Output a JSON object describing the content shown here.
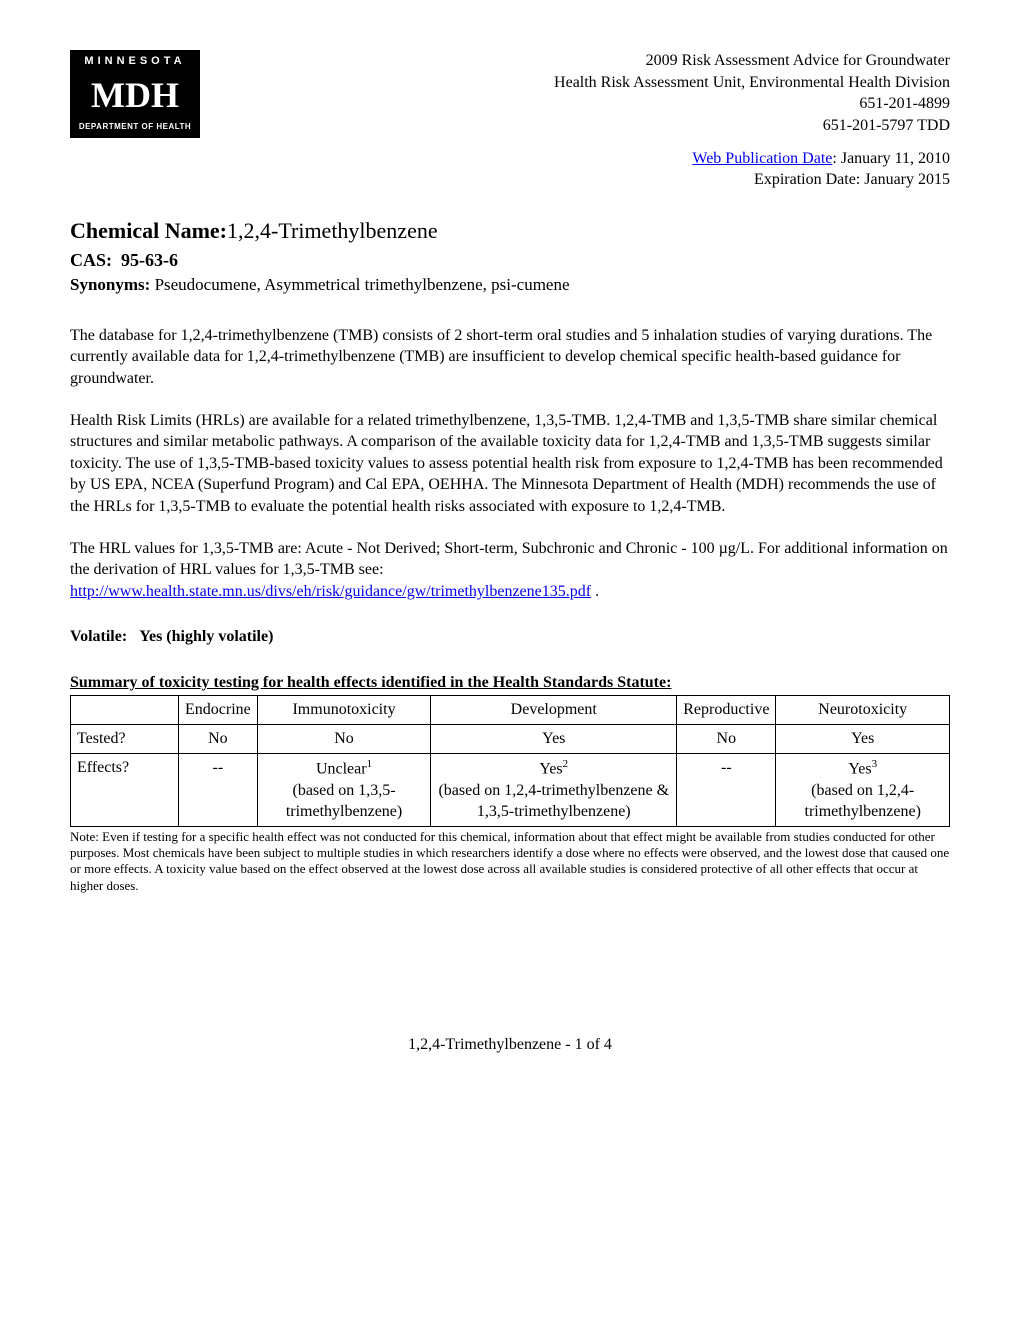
{
  "logo": {
    "top": "MINNESOTA",
    "mid": "MDH",
    "bot": "DEPARTMENT OF HEALTH"
  },
  "header": {
    "line1": "2009 Risk Assessment Advice for Groundwater",
    "line2": "Health Risk Assessment Unit, Environmental Health Division",
    "line3": "651-201-4899",
    "line4": "651-201-5797 TDD"
  },
  "pub_date": {
    "link_text": "Web Publication Date",
    "pub": ": January 11, 2010",
    "exp": "Expiration Date: January 2015"
  },
  "title": {
    "label": "Chemical Name:",
    "value": "1,2,4-Trimethylbenzene"
  },
  "cas": {
    "label": "CAS:",
    "value": "95-63-6"
  },
  "syn": {
    "label": "Synonyms:",
    "value": "Pseudocumene, Asymmetrical trimethylbenzene, psi-cumene"
  },
  "para1": "The database for 1,2,4-trimethylbenzene (TMB) consists of 2 short-term oral studies and 5 inhalation studies of varying durations. The currently available data for 1,2,4-trimethylbenzene (TMB) are insufficient to develop chemical specific health-based guidance for groundwater.",
  "para2": "Health Risk Limits (HRLs) are available for a related trimethylbenzene, 1,3,5-TMB. 1,2,4-TMB and 1,3,5-TMB share similar chemical structures and similar metabolic pathways. A comparison of the available toxicity data for 1,2,4-TMB and 1,3,5-TMB suggests similar toxicity. The use of 1,3,5-TMB-based toxicity values to assess potential health risk from exposure to 1,2,4-TMB has been recommended by US EPA, NCEA (Superfund Program) and Cal EPA, OEHHA. The Minnesota Department of Health (MDH) recommends the use of the HRLs for 1,3,5-TMB to evaluate the potential health risks associated with exposure to 1,2,4-TMB.",
  "para3_a": "The HRL values for 1,3,5-TMB are: Acute - Not Derived; Short-term, Subchronic and Chronic - 100 µg/L. For additional information on the derivation of HRL values for 1,3,5-TMB see:",
  "para3_link": "http://www.health.state.mn.us/divs/eh/risk/guidance/gw/trimethylbenzene135.pdf",
  "para3_b": " .",
  "volatile": {
    "label": "Volatile:",
    "value": "Yes (highly volatile)"
  },
  "table_caption": "Summary of toxicity testing for health effects identified in the Health Standards Statute:",
  "table": {
    "headers": [
      "",
      "Endocrine",
      "Immunotoxicity",
      "Development",
      "Reproductive",
      "Neurotoxicity"
    ],
    "row1_label": "Tested?",
    "row1": [
      "No",
      "No",
      "Yes",
      "No",
      "Yes"
    ],
    "row2_label": "Effects?",
    "row2_c1": "--",
    "row2_c2_a": "Unclear",
    "row2_c2_sup": "1",
    "row2_c2_b": "(based on 1,3,5-trimethylbenzene)",
    "row2_c3_a": "Yes",
    "row2_c3_sup": "2",
    "row2_c3_b": "(based on 1,2,4-trimethylbenzene & 1,3,5-trimethylbenzene)",
    "row2_c4": "--",
    "row2_c5_a": "Yes",
    "row2_c5_sup": "3",
    "row2_c5_b": "(based on 1,2,4-trimethylbenzene)"
  },
  "note": "Note: Even if testing for a specific health effect was not conducted for this chemical, information about that effect might be available from studies conducted for other purposes. Most chemicals have been subject to multiple studies in which researchers identify a dose where no effects were observed, and the lowest dose that caused one or more effects. A toxicity value based on the effect observed at the lowest dose across all available studies is considered protective of all other effects that occur at higher doses.",
  "footer": "1,2,4-Trimethylbenzene - 1 of 4"
}
